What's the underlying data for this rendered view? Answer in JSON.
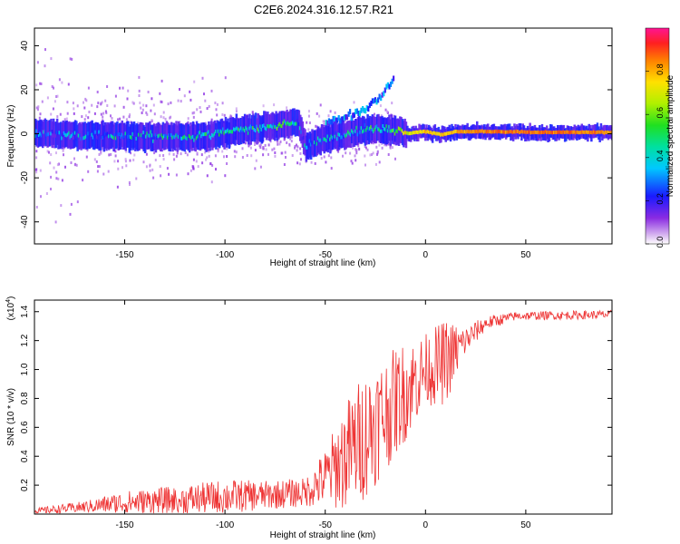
{
  "figure_title": "C2E6.2024.316.12.57.R21",
  "chart_data": [
    {
      "type": "heatmap",
      "name": "spectrogram",
      "xlabel": "Height of straight line (km)",
      "ylabel": "Frequency (Hz)",
      "xlim": [
        -195,
        93
      ],
      "ylim": [
        -50,
        48
      ],
      "xticks": [
        -150,
        -100,
        -50,
        0,
        50
      ],
      "yticks": [
        -40,
        -20,
        0,
        20,
        40
      ],
      "colorbar": {
        "label": "Normalized spectral amplitude",
        "range": [
          0,
          1
        ],
        "ticks": [
          0.0,
          0.2,
          0.4,
          0.6,
          0.8
        ],
        "tick_labels": [
          "0.0",
          "0.2",
          "0.4",
          "0.6",
          "0.8"
        ]
      },
      "ridge": [
        {
          "x": -190,
          "f": 0.0,
          "a": 0.25
        },
        {
          "x": -170,
          "f": -1.0,
          "a": 0.3
        },
        {
          "x": -150,
          "f": -1.0,
          "a": 0.35
        },
        {
          "x": -130,
          "f": -1.5,
          "a": 0.35
        },
        {
          "x": -110,
          "f": -1.0,
          "a": 0.4
        },
        {
          "x": -100,
          "f": 0.5,
          "a": 0.4
        },
        {
          "x": -90,
          "f": 2.0,
          "a": 0.45
        },
        {
          "x": -80,
          "f": 3.0,
          "a": 0.45
        },
        {
          "x": -70,
          "f": 4.0,
          "a": 0.45
        },
        {
          "x": -64,
          "f": 5.5,
          "a": 0.35
        },
        {
          "x": -60,
          "f": -6.0,
          "a": 0.3
        },
        {
          "x": -55,
          "f": -4.0,
          "a": 0.35
        },
        {
          "x": -45,
          "f": -1.0,
          "a": 0.35
        },
        {
          "x": -35,
          "f": 1.0,
          "a": 0.4
        },
        {
          "x": -25,
          "f": 2.5,
          "a": 0.45
        },
        {
          "x": -15,
          "f": 1.5,
          "a": 0.55
        },
        {
          "x": -10,
          "f": 0.0,
          "a": 0.65
        },
        {
          "x": 0,
          "f": 0.8,
          "a": 0.8
        },
        {
          "x": 8,
          "f": -0.5,
          "a": 0.75
        },
        {
          "x": 15,
          "f": 0.8,
          "a": 0.8
        },
        {
          "x": 30,
          "f": 0.8,
          "a": 0.85
        },
        {
          "x": 60,
          "f": 0.5,
          "a": 0.85
        },
        {
          "x": 93,
          "f": 0.5,
          "a": 0.85
        }
      ],
      "upper_branch": [
        {
          "x": -50,
          "f": 4.0
        },
        {
          "x": -40,
          "f": 7.0
        },
        {
          "x": -30,
          "f": 11.0
        },
        {
          "x": -22,
          "f": 17.0
        },
        {
          "x": -16,
          "f": 25.0
        }
      ]
    },
    {
      "type": "line",
      "name": "snr",
      "xlabel": "Height of straight line (km)",
      "ylabel": "SNR (10 * v/v)",
      "scale_label": "(x10",
      "scale_exp": "4",
      "scale_suffix": ")",
      "xlim": [
        -195,
        93
      ],
      "ylim": [
        0,
        1.48
      ],
      "xticks": [
        -150,
        -100,
        -50,
        0,
        50
      ],
      "yticks": [
        0.2,
        0.4,
        0.6,
        0.8,
        1.0,
        1.2,
        1.4
      ],
      "ytick_labels": [
        "0.2",
        "0.4",
        "0.6",
        "0.8",
        "1.0",
        "1.2",
        "1.4"
      ],
      "color": "#ee3333",
      "envelope": [
        {
          "x": -195,
          "mean": 0.02,
          "amp": 0.02
        },
        {
          "x": -170,
          "mean": 0.05,
          "amp": 0.04
        },
        {
          "x": -150,
          "mean": 0.08,
          "amp": 0.08
        },
        {
          "x": -120,
          "mean": 0.1,
          "amp": 0.1
        },
        {
          "x": -100,
          "mean": 0.12,
          "amp": 0.12
        },
        {
          "x": -80,
          "mean": 0.13,
          "amp": 0.1
        },
        {
          "x": -60,
          "mean": 0.15,
          "amp": 0.1
        },
        {
          "x": -50,
          "mean": 0.25,
          "amp": 0.2
        },
        {
          "x": -40,
          "mean": 0.4,
          "amp": 0.38
        },
        {
          "x": -30,
          "mean": 0.55,
          "amp": 0.45
        },
        {
          "x": -20,
          "mean": 0.7,
          "amp": 0.4
        },
        {
          "x": -10,
          "mean": 0.85,
          "amp": 0.35
        },
        {
          "x": 0,
          "mean": 1.0,
          "amp": 0.25
        },
        {
          "x": 10,
          "mean": 1.05,
          "amp": 0.3
        },
        {
          "x": 20,
          "mean": 1.2,
          "amp": 0.1
        },
        {
          "x": 30,
          "mean": 1.32,
          "amp": 0.05
        },
        {
          "x": 45,
          "mean": 1.37,
          "amp": 0.03
        },
        {
          "x": 93,
          "mean": 1.38,
          "amp": 0.03
        }
      ]
    }
  ]
}
